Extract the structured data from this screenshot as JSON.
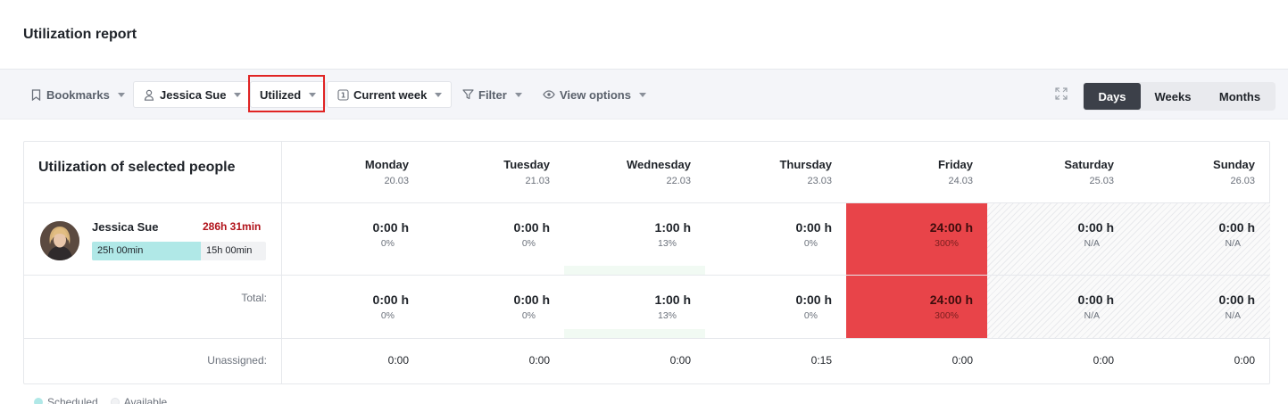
{
  "page": {
    "title": "Utilization report"
  },
  "toolbar": {
    "bookmarks": "Bookmarks",
    "person": "Jessica Sue",
    "mode": "Utilized",
    "period": "Current week",
    "period_icon_text": "1",
    "filter": "Filter",
    "view_options": "View options",
    "views": [
      {
        "label": "Days",
        "active": true
      },
      {
        "label": "Weeks",
        "active": false
      },
      {
        "label": "Months",
        "active": false
      }
    ]
  },
  "grid": {
    "title": "Utilization of selected people",
    "days": [
      {
        "name": "Monday",
        "date": "20.03"
      },
      {
        "name": "Tuesday",
        "date": "21.03"
      },
      {
        "name": "Wednesday",
        "date": "22.03"
      },
      {
        "name": "Thursday",
        "date": "23.03"
      },
      {
        "name": "Friday",
        "date": "24.03"
      },
      {
        "name": "Saturday",
        "date": "25.03"
      },
      {
        "name": "Sunday",
        "date": "26.03"
      }
    ],
    "person": {
      "name": "Jessica Sue",
      "total": "286h 31min",
      "scheduled": "25h 00min",
      "available": "15h 00min",
      "scheduled_fraction": 0.625,
      "cells": [
        {
          "hours": "0:00 h",
          "pct": "0%"
        },
        {
          "hours": "0:00 h",
          "pct": "0%"
        },
        {
          "hours": "1:00 h",
          "pct": "13%"
        },
        {
          "hours": "0:00 h",
          "pct": "0%"
        },
        {
          "hours": "24:00 h",
          "pct": "300%"
        },
        {
          "hours": "0:00 h",
          "pct": "N/A"
        },
        {
          "hours": "0:00 h",
          "pct": "N/A"
        }
      ]
    },
    "total": {
      "label": "Total:",
      "cells": [
        {
          "hours": "0:00 h",
          "pct": "0%"
        },
        {
          "hours": "0:00 h",
          "pct": "0%"
        },
        {
          "hours": "1:00 h",
          "pct": "13%"
        },
        {
          "hours": "0:00 h",
          "pct": "0%"
        },
        {
          "hours": "24:00 h",
          "pct": "300%"
        },
        {
          "hours": "0:00 h",
          "pct": "N/A"
        },
        {
          "hours": "0:00 h",
          "pct": "N/A"
        }
      ]
    },
    "unassigned": {
      "label": "Unassigned:",
      "values": [
        "0:00",
        "0:00",
        "0:00",
        "0:15",
        "0:00",
        "0:00",
        "0:00"
      ]
    }
  },
  "legend": {
    "scheduled": "Scheduled",
    "available": "Available"
  },
  "colors": {
    "over_utilized": "#e84449",
    "total_red": "#b1121a",
    "scheduled_bar": "#b0e8e7",
    "active_tab": "#3c4049",
    "highlight_box": "#e02424"
  }
}
